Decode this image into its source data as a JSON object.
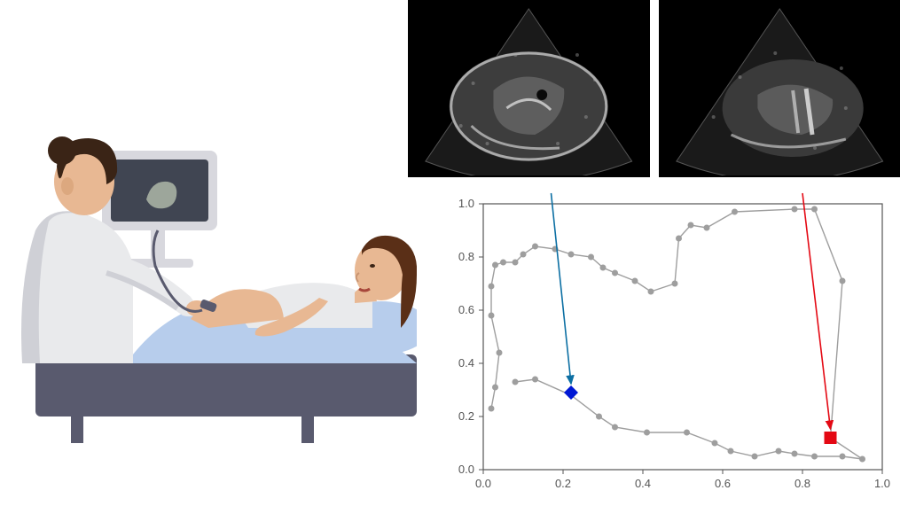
{
  "illustration": {
    "background": "#ffffff",
    "exam_bed_color": "#595a6e",
    "blanket_color": "#b7cdec",
    "pillow_color": "#b7cdec",
    "doctor": {
      "coat_color": "#e9eaec",
      "coat_shadow": "#cfd0d6",
      "hair_color": "#3a2416",
      "skin_color": "#e8b893"
    },
    "patient": {
      "skin_color": "#e8b893",
      "hair_color": "#5a2f17",
      "lip_color": "#a7463a",
      "gown_color": "#e9eaec"
    },
    "monitor": {
      "body_color": "#d8d8de",
      "screen_color": "#404552",
      "image_color": "#aeb7a8"
    }
  },
  "ultrasound": {
    "left": {
      "bg": "#000000",
      "tissue": "#a8a8a8"
    },
    "right": {
      "bg": "#000000",
      "tissue": "#9e9e9e"
    }
  },
  "chart": {
    "type": "scatter",
    "background_color": "#ffffff",
    "axis_color": "#555555",
    "tick_fontsize": 13,
    "line_color": "#9e9e9e",
    "point_color": "#9e9e9e",
    "point_radius": 3.5,
    "line_width": 1.4,
    "xlim": [
      0,
      1
    ],
    "ylim": [
      0,
      1
    ],
    "xticks": [
      0.0,
      0.2,
      0.4,
      0.6,
      0.8,
      1.0
    ],
    "yticks": [
      0.0,
      0.2,
      0.4,
      0.6,
      0.8,
      1.0
    ],
    "xtick_labels": [
      "0.0",
      "0.2",
      "0.4",
      "0.6",
      "0.8",
      "1.0"
    ],
    "ytick_labels": [
      "0.0",
      "0.2",
      "0.4",
      "0.6",
      "0.8",
      "1.0"
    ],
    "trajectory": [
      [
        0.02,
        0.23
      ],
      [
        0.03,
        0.31
      ],
      [
        0.04,
        0.44
      ],
      [
        0.02,
        0.58
      ],
      [
        0.02,
        0.69
      ],
      [
        0.03,
        0.77
      ],
      [
        0.05,
        0.78
      ],
      [
        0.08,
        0.78
      ],
      [
        0.1,
        0.81
      ],
      [
        0.13,
        0.84
      ],
      [
        0.18,
        0.83
      ],
      [
        0.22,
        0.81
      ],
      [
        0.27,
        0.8
      ],
      [
        0.3,
        0.76
      ],
      [
        0.33,
        0.74
      ],
      [
        0.38,
        0.71
      ],
      [
        0.42,
        0.67
      ],
      [
        0.48,
        0.7
      ],
      [
        0.49,
        0.87
      ],
      [
        0.52,
        0.92
      ],
      [
        0.56,
        0.91
      ],
      [
        0.63,
        0.97
      ],
      [
        0.78,
        0.98
      ],
      [
        0.83,
        0.98
      ],
      [
        0.9,
        0.71
      ],
      [
        0.87,
        0.12
      ],
      [
        0.95,
        0.04
      ],
      [
        0.9,
        0.05
      ],
      [
        0.83,
        0.05
      ],
      [
        0.78,
        0.06
      ],
      [
        0.74,
        0.07
      ],
      [
        0.68,
        0.05
      ],
      [
        0.62,
        0.07
      ],
      [
        0.58,
        0.1
      ],
      [
        0.51,
        0.14
      ],
      [
        0.41,
        0.14
      ],
      [
        0.33,
        0.16
      ],
      [
        0.29,
        0.2
      ],
      [
        0.22,
        0.28
      ],
      [
        0.13,
        0.34
      ],
      [
        0.08,
        0.33
      ]
    ],
    "markers": {
      "blue_diamond": {
        "x": 0.22,
        "y": 0.29,
        "color": "#0018d4",
        "size": 16
      },
      "red_square": {
        "x": 0.87,
        "y": 0.12,
        "color": "#e40914",
        "size": 14
      }
    },
    "arrows": {
      "blue": {
        "color": "#0c6fa3",
        "from_top_x": 0.17,
        "to": [
          0.22,
          0.29
        ]
      },
      "red": {
        "color": "#e40914",
        "from_top_x": 0.8,
        "to": [
          0.87,
          0.12
        ]
      }
    }
  }
}
